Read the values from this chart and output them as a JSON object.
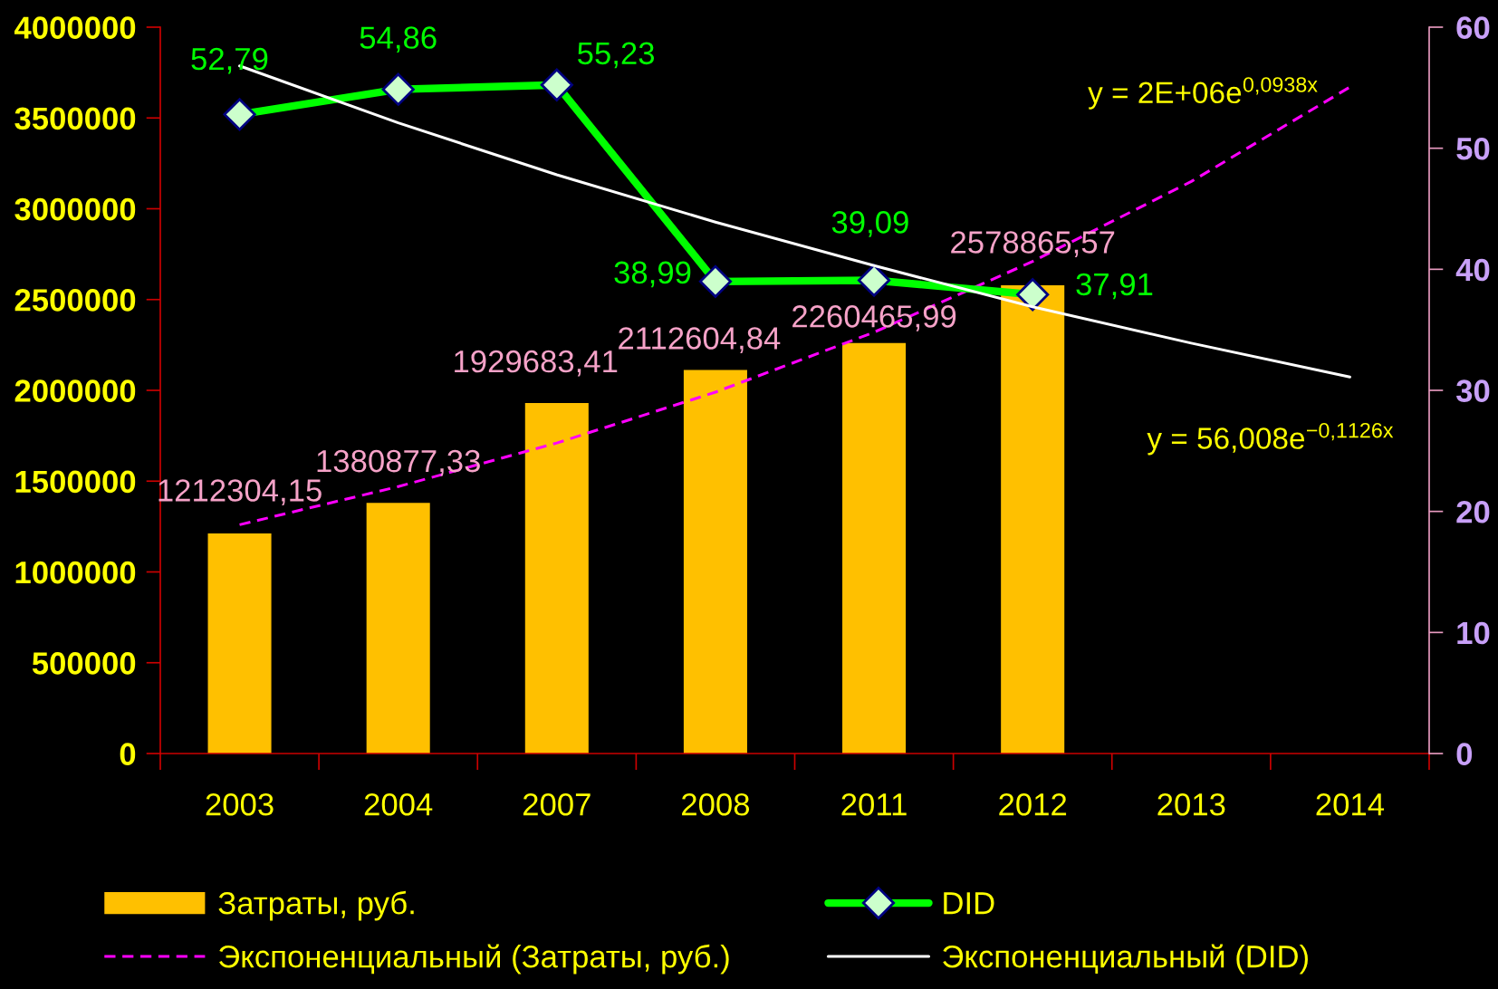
{
  "chart_data": {
    "type": "bar",
    "categories": [
      "2003",
      "2004",
      "2007",
      "2008",
      "2011",
      "2012",
      "2013",
      "2014"
    ],
    "series": [
      {
        "name": "Затраты, руб.",
        "color": "#ffc000",
        "values": [
          1212304.15,
          1380877.33,
          1929683.41,
          2112604.84,
          2260465.99,
          2578865.57,
          null,
          null
        ],
        "value_labels": [
          "1212304,15",
          "1380877,33",
          "1929683,41",
          "2112604,84",
          "2260465,99",
          "2578865,57",
          null,
          null
        ]
      },
      {
        "name": "DID",
        "type": "line",
        "axis": "y2",
        "color": "#00ff00",
        "marker": "diamond",
        "line_style": "solid",
        "values": [
          52.79,
          54.86,
          55.23,
          38.99,
          39.09,
          37.91,
          null,
          null
        ],
        "value_labels": [
          "52,79",
          "54,86",
          "55,23",
          "38,99",
          "39,09",
          "37,91",
          null,
          null
        ]
      },
      {
        "name": "Экспоненциальный (Затраты, руб.)",
        "type": "line",
        "color": "#ff00ff",
        "marker": "none",
        "line_style": "dashed",
        "values": [
          1260000,
          1470000,
          1710000,
          1990000,
          2320000,
          2710000,
          3150000,
          3670000
        ]
      },
      {
        "name": "Экспоненциальный (DID)",
        "type": "line",
        "axis": "y2",
        "color": "#ffffff",
        "marker": "none",
        "line_style": "solid",
        "values": [
          56.8,
          52.1,
          47.8,
          43.9,
          40.3,
          36.9,
          33.9,
          31.1
        ]
      }
    ],
    "ylim": [
      0,
      4000000
    ],
    "yticks": [
      0,
      500000,
      1000000,
      1500000,
      2000000,
      2500000,
      3000000,
      3500000,
      4000000
    ],
    "y2lim": [
      0,
      60
    ],
    "y2ticks": [
      0,
      10,
      20,
      30,
      40,
      50,
      60
    ],
    "annotations": [
      "y = 2E+06e$^{0,0938x}$",
      "y = 56,008e$^{−0,1126x}$"
    ],
    "grid": false,
    "legend": "bottom"
  }
}
